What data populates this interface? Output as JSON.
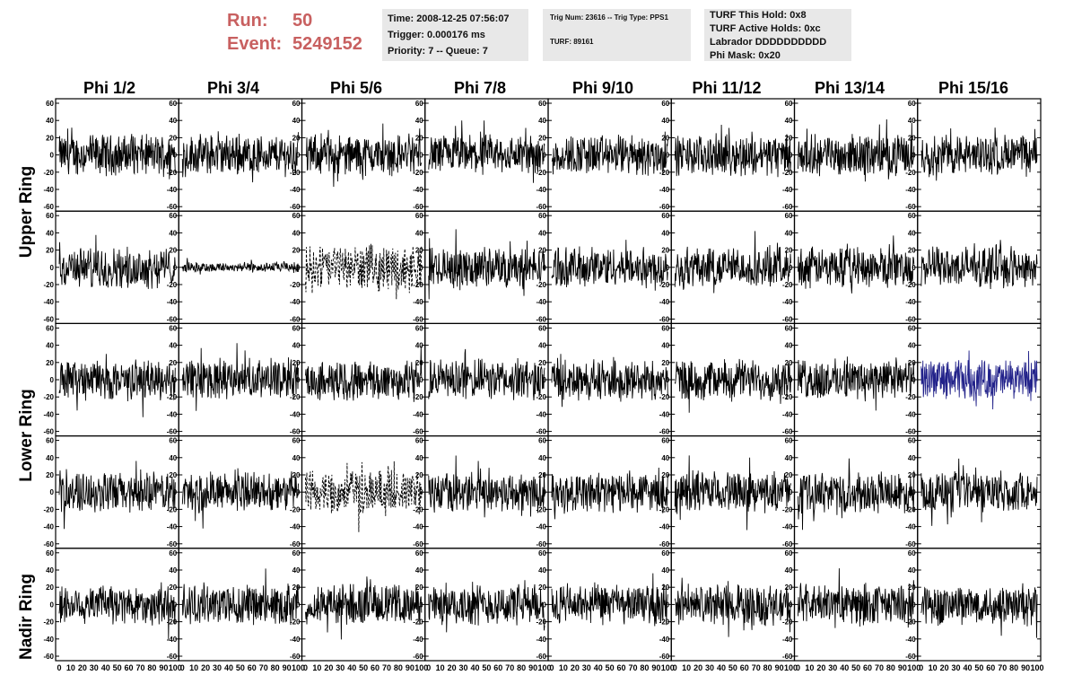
{
  "run": {
    "label": "Run:",
    "value": "50"
  },
  "event": {
    "label": "Event:",
    "value": "5249152"
  },
  "info1": {
    "time": "Time: 2008-12-25 07:56:07",
    "trigger": "Trigger: 0.000176 ms",
    "priority": "Priority: 7 -- Queue: 7"
  },
  "info2": {
    "trig": "Trig Num: 23616 -- Trig Type: PPS1",
    "turf": "TURF: 89161"
  },
  "info3": {
    "hold": "TURF This Hold: 0x8",
    "active": "TURF Active Holds: 0xc",
    "labrador": "Labrador DDDDDDDDDD",
    "phimask": "Phi Mask: 0x20"
  },
  "phi_labels": [
    "Phi 1/2",
    "Phi 3/4",
    "Phi 5/6",
    "Phi 7/8",
    "Phi 9/10",
    "Phi 11/12",
    "Phi 13/14",
    "Phi 15/16"
  ],
  "ring_labels": {
    "upper": "Upper Ring",
    "lower": "Lower Ring",
    "nadir": "Nadir Ring"
  },
  "colors": {
    "trace": "#000000",
    "highlight": "#22228a",
    "run_text": "#c86060",
    "box_bg": "#e8e8e8"
  },
  "chart_data": {
    "type": "line",
    "rows": 5,
    "cols": 8,
    "ylim": [
      -60,
      60
    ],
    "xlim": [
      0,
      100
    ],
    "y_ticks": [
      -60,
      -40,
      -20,
      0,
      20,
      40,
      60
    ],
    "x_ticks": [
      0,
      10,
      20,
      30,
      40,
      50,
      60,
      70,
      80,
      90,
      100
    ],
    "x_tick_labels_bottom": "0 10 20 30 40 50 60 70 80 90 100",
    "panels_special": {
      "dashed": [
        [
          1,
          2
        ],
        [
          3,
          2
        ]
      ],
      "low_amplitude": [
        [
          1,
          1
        ]
      ],
      "highlighted_blue": [
        [
          2,
          7
        ]
      ]
    },
    "typical_amplitude": 20
  }
}
